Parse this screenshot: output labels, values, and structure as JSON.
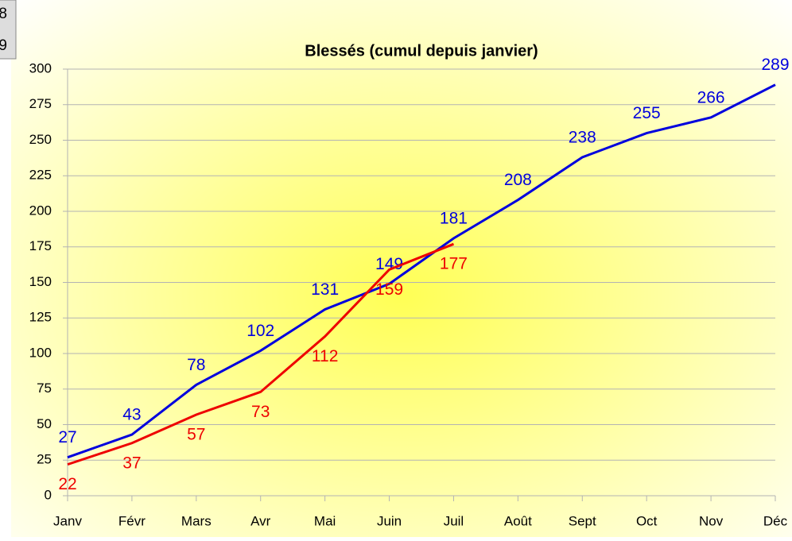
{
  "chart_data": {
    "type": "line",
    "title": "Blessés (cumul depuis janvier)",
    "categories": [
      "Janv",
      "Févr",
      "Mars",
      "Avr",
      "Mai",
      "Juin",
      "Juil",
      "Août",
      "Sept",
      "Oct",
      "Nov",
      "Déc"
    ],
    "series": [
      {
        "name": "8",
        "color": "#0000dd",
        "values": [
          27,
          43,
          78,
          102,
          131,
          149,
          181,
          208,
          238,
          255,
          266,
          289
        ]
      },
      {
        "name": "9",
        "color": "#ee0000",
        "values": [
          22,
          37,
          57,
          73,
          112,
          159,
          177,
          null,
          null,
          null,
          null,
          null
        ]
      }
    ],
    "ylim": [
      0,
      300
    ],
    "yticks": [
      0,
      25,
      50,
      75,
      100,
      125,
      150,
      175,
      200,
      225,
      250,
      275,
      300
    ],
    "grid": true
  }
}
